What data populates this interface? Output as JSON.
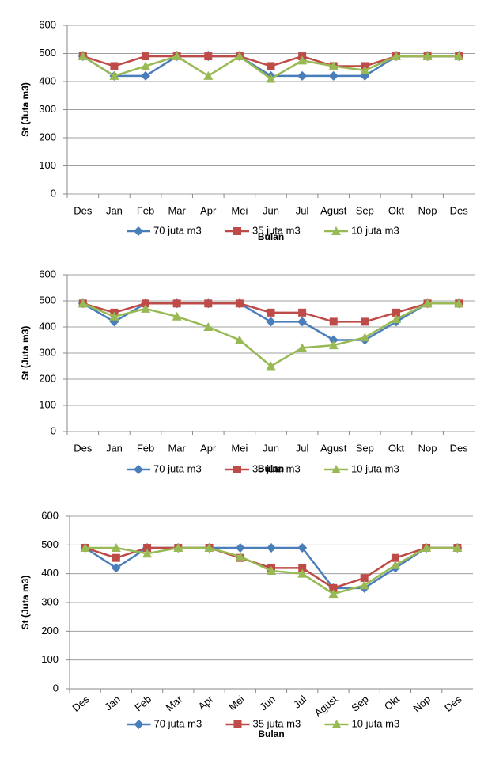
{
  "chart_data": [
    {
      "type": "line",
      "x_label": "Bulan",
      "y_label": "St (Juta m3)",
      "grid": true,
      "categories": [
        "Des",
        "Jan",
        "Feb",
        "Mar",
        "Apr",
        "Mei",
        "Jun",
        "Jul",
        "Agust",
        "Sep",
        "Okt",
        "Nop",
        "Des"
      ],
      "ylim": [
        0,
        600
      ],
      "yticks": [
        0,
        100,
        200,
        300,
        400,
        500,
        600
      ],
      "series": [
        {
          "name": "70 juta m3",
          "color": "#4a7ebb",
          "marker": "diamond",
          "values": [
            490,
            420,
            420,
            490,
            490,
            490,
            420,
            420,
            420,
            420,
            490,
            490,
            490
          ]
        },
        {
          "name": "35 juta m3",
          "color": "#be4b48",
          "marker": "square",
          "values": [
            490,
            455,
            490,
            490,
            490,
            490,
            455,
            490,
            455,
            455,
            490,
            490,
            490
          ]
        },
        {
          "name": "10 juta m3",
          "color": "#98b954",
          "marker": "triangle",
          "values": [
            490,
            420,
            455,
            490,
            420,
            490,
            410,
            475,
            455,
            440,
            490,
            490,
            490
          ]
        }
      ]
    },
    {
      "type": "line",
      "x_label": "Bulan",
      "y_label": "St (Juta m3)",
      "grid": true,
      "categories": [
        "Des",
        "Jan",
        "Feb",
        "Mar",
        "Apr",
        "Mei",
        "Jun",
        "Jul",
        "Agust",
        "Sep",
        "Okt",
        "Nop",
        "Des"
      ],
      "ylim": [
        0,
        600
      ],
      "yticks": [
        0,
        100,
        200,
        300,
        400,
        500,
        600
      ],
      "series": [
        {
          "name": "70 juta m3",
          "color": "#4a7ebb",
          "marker": "diamond",
          "values": [
            490,
            420,
            490,
            490,
            490,
            490,
            420,
            420,
            350,
            350,
            420,
            490,
            490
          ]
        },
        {
          "name": "35 juta m3",
          "color": "#be4b48",
          "marker": "square",
          "values": [
            490,
            455,
            490,
            490,
            490,
            490,
            455,
            455,
            420,
            420,
            455,
            490,
            490
          ]
        },
        {
          "name": "10 juta m3",
          "color": "#98b954",
          "marker": "triangle",
          "values": [
            490,
            440,
            470,
            440,
            400,
            350,
            250,
            320,
            330,
            360,
            430,
            490,
            490
          ]
        }
      ]
    },
    {
      "type": "line",
      "x_label": "Bulan",
      "y_label": "St (Juta m3)",
      "grid": true,
      "categories": [
        "Des",
        "Jan",
        "Feb",
        "Mar",
        "Apr",
        "Mei",
        "Jun",
        "Jul",
        "Agust",
        "Sep",
        "Okt",
        "Nop",
        "Des"
      ],
      "ylim": [
        0,
        600
      ],
      "yticks": [
        0,
        100,
        200,
        300,
        400,
        500,
        600
      ],
      "series": [
        {
          "name": "70 juta m3",
          "color": "#4a7ebb",
          "marker": "diamond",
          "values": [
            490,
            420,
            490,
            490,
            490,
            490,
            490,
            490,
            350,
            350,
            420,
            490,
            490
          ]
        },
        {
          "name": "35 juta m3",
          "color": "#be4b48",
          "marker": "square",
          "values": [
            490,
            455,
            490,
            490,
            490,
            455,
            420,
            420,
            350,
            385,
            455,
            490,
            490
          ]
        },
        {
          "name": "10 juta m3",
          "color": "#98b954",
          "marker": "triangle",
          "values": [
            490,
            490,
            470,
            490,
            490,
            460,
            410,
            400,
            330,
            360,
            430,
            490,
            490
          ]
        }
      ]
    }
  ]
}
